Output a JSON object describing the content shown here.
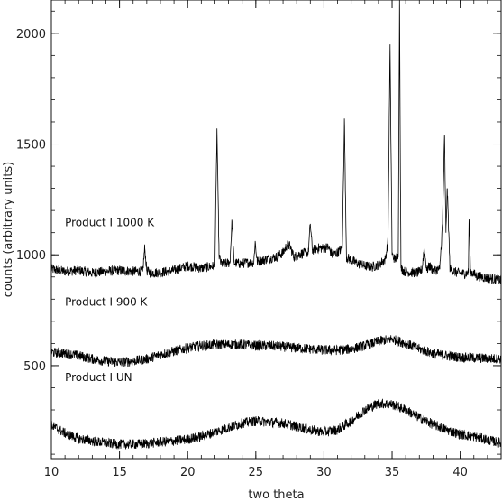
{
  "chart_data": {
    "type": "line",
    "title": "",
    "xlabel": "two theta",
    "ylabel": "counts (arbitrary units)",
    "xlim": [
      10,
      43
    ],
    "ylim": [
      80,
      2150
    ],
    "grid": false,
    "legend": "none",
    "x_ticks": [
      10,
      15,
      20,
      25,
      30,
      35,
      40
    ],
    "y_ticks": [
      500,
      1000,
      1500,
      2000
    ],
    "line_color": "#000000",
    "series": [
      {
        "name": "Product I 1000 K",
        "x": [
          10,
          11,
          12,
          13,
          14,
          15,
          16,
          16.7,
          16.85,
          17.0,
          17.2,
          18,
          19,
          20,
          21,
          22,
          22.15,
          22.3,
          22.45,
          22.8,
          23.1,
          23.25,
          23.4,
          23.8,
          24.5,
          24.85,
          24.95,
          25.1,
          25.5,
          26,
          26.5,
          27,
          27.3,
          27.5,
          27.8,
          28.3,
          28.85,
          29.0,
          29.15,
          29.6,
          30.0,
          30.3,
          30.6,
          31.0,
          31.35,
          31.5,
          31.65,
          32.0,
          32.5,
          33,
          33.5,
          34,
          34.5,
          34.7,
          34.85,
          35.0,
          35.2,
          35.45,
          35.55,
          35.65,
          35.9,
          36.5,
          37.0,
          37.2,
          37.35,
          37.55,
          37.75,
          38.0,
          38.5,
          38.7,
          38.85,
          38.95,
          39.05,
          39.25,
          39.7,
          40.3,
          40.6,
          40.65,
          40.75,
          41.2,
          42,
          43
        ],
        "y": [
          935,
          925,
          930,
          918,
          925,
          930,
          925,
          925,
          1030,
          928,
          920,
          920,
          930,
          950,
          940,
          950,
          1570,
          1000,
          960,
          960,
          965,
          1150,
          965,
          960,
          965,
          965,
          1060,
          970,
          975,
          985,
          990,
          1010,
          1045,
          1040,
          990,
          1005,
          1010,
          1140,
          1020,
          1030,
          1030,
          1035,
          1000,
          1010,
          1030,
          1615,
          990,
          975,
          960,
          950,
          945,
          955,
          980,
          1060,
          1950,
          1000,
          980,
          995,
          2150,
          940,
          925,
          920,
          920,
          935,
          1030,
          930,
          950,
          930,
          935,
          1140,
          1540,
          1100,
          1300,
          935,
          920,
          915,
          920,
          1160,
          925,
          905,
          895,
          885
        ]
      },
      {
        "name": "Product I 900 K",
        "x": [
          10,
          11,
          12,
          13,
          14,
          15,
          16,
          17,
          18,
          19,
          20,
          21,
          22,
          23,
          24,
          25,
          26,
          27,
          28,
          29,
          30,
          31,
          32,
          33,
          34,
          35,
          36,
          37,
          38,
          39,
          40,
          41,
          42,
          43
        ],
        "y": [
          560,
          555,
          545,
          530,
          520,
          515,
          520,
          530,
          550,
          565,
          580,
          590,
          595,
          595,
          595,
          590,
          590,
          585,
          580,
          575,
          570,
          570,
          575,
          590,
          610,
          620,
          600,
          575,
          555,
          545,
          538,
          535,
          532,
          530
        ]
      },
      {
        "name": "Product I UN",
        "x": [
          10,
          11,
          12,
          13,
          14,
          15,
          16,
          17,
          18,
          19,
          20,
          21,
          22,
          23,
          24,
          25,
          26,
          27,
          28,
          29,
          30,
          31,
          32,
          33,
          34,
          35,
          36,
          37,
          38,
          39,
          40,
          41,
          42,
          43
        ],
        "y": [
          230,
          195,
          170,
          160,
          150,
          145,
          145,
          148,
          155,
          160,
          168,
          180,
          200,
          220,
          240,
          250,
          245,
          240,
          225,
          210,
          200,
          210,
          250,
          300,
          330,
          325,
          300,
          265,
          235,
          210,
          190,
          180,
          165,
          150
        ]
      }
    ],
    "annotations": [
      {
        "text": "Product I 1000 K",
        "x": 11.0,
        "y": 1130
      },
      {
        "text": "Product I 900 K",
        "x": 11.0,
        "y": 770
      },
      {
        "text": "Product I UN",
        "x": 11.0,
        "y": 430
      }
    ]
  }
}
